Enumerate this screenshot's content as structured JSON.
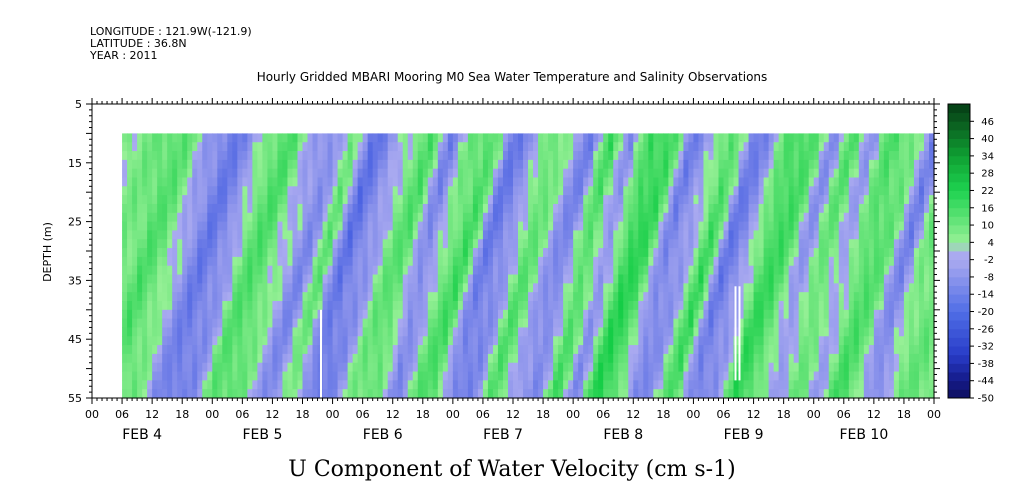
{
  "header": {
    "longitude": "LONGITUDE : 121.9W(-121.9)",
    "latitude": "LATITUDE : 36.8N",
    "year": "YEAR : 2011",
    "title": "Hourly Gridded MBARI Mooring M0 Sea Water Temperature and Salinity Observations"
  },
  "chart_data": {
    "type": "heatmap",
    "title": "Hourly Gridded MBARI Mooring M0 Sea Water Temperature and Salinity Observations",
    "xlabel": "U Component of Water Velocity (cm s-1)",
    "ylabel": "DEPTH (m)",
    "y_axis": {
      "ticks": [
        5,
        15,
        25,
        35,
        45,
        55
      ],
      "range": [
        5,
        55
      ],
      "inverted": true
    },
    "x_axis": {
      "hour_ticks": [
        "00",
        "06",
        "12",
        "18",
        "00",
        "06",
        "12",
        "18",
        "00",
        "06",
        "12",
        "18",
        "00",
        "06",
        "12",
        "18",
        "00",
        "06",
        "12",
        "18",
        "00",
        "06",
        "12",
        "18",
        "00",
        "06",
        "12",
        "18",
        "00"
      ],
      "day_labels": [
        "FEB 4",
        "FEB 5",
        "FEB 6",
        "FEB 7",
        "FEB 8",
        "FEB 9",
        "FEB 10"
      ],
      "range_hours": [
        0,
        168
      ]
    },
    "data_extent": {
      "start_hour": 6,
      "end_hour": 168,
      "depth_top": 10,
      "depth_bottom": 55
    },
    "colorbar": {
      "labels": [
        "46",
        "40",
        "34",
        "28",
        "22",
        "16",
        "10",
        "4",
        "-2",
        "-8",
        "-14",
        "-20",
        "-26",
        "-32",
        "-38",
        "-44",
        "-50"
      ],
      "range": [
        -50,
        52
      ],
      "step": 3
    },
    "hourly_u_profile": [
      {
        "hour": 6,
        "u": 4
      },
      {
        "hour": 10,
        "u": 10
      },
      {
        "hour": 14,
        "u": 6
      },
      {
        "hour": 18,
        "u": -6
      },
      {
        "hour": 22,
        "u": -14
      },
      {
        "hour": 26,
        "u": -8
      },
      {
        "hour": 30,
        "u": 8
      },
      {
        "hour": 34,
        "u": 10
      },
      {
        "hour": 38,
        "u": -2
      },
      {
        "hour": 42,
        "u": -10
      },
      {
        "hour": 46,
        "u": 8
      },
      {
        "hour": 50,
        "u": -16
      },
      {
        "hour": 54,
        "u": -8
      },
      {
        "hour": 58,
        "u": 4
      },
      {
        "hour": 62,
        "u": 10
      },
      {
        "hour": 66,
        "u": -12
      },
      {
        "hour": 70,
        "u": 6
      },
      {
        "hour": 74,
        "u": 12
      },
      {
        "hour": 78,
        "u": -14
      },
      {
        "hour": 82,
        "u": -8
      },
      {
        "hour": 86,
        "u": 10
      },
      {
        "hour": 90,
        "u": -2
      },
      {
        "hour": 94,
        "u": -12
      },
      {
        "hour": 98,
        "u": 14
      },
      {
        "hour": 102,
        "u": -10
      },
      {
        "hour": 106,
        "u": 16
      },
      {
        "hour": 110,
        "u": 12
      },
      {
        "hour": 114,
        "u": -12
      },
      {
        "hour": 118,
        "u": -4
      },
      {
        "hour": 122,
        "u": 14
      },
      {
        "hour": 126,
        "u": -14
      },
      {
        "hour": 130,
        "u": -6
      },
      {
        "hour": 134,
        "u": 14
      },
      {
        "hour": 138,
        "u": 10
      },
      {
        "hour": 142,
        "u": -8
      },
      {
        "hour": 146,
        "u": 10
      },
      {
        "hour": 150,
        "u": -6
      },
      {
        "hour": 154,
        "u": 12
      },
      {
        "hour": 158,
        "u": 6
      },
      {
        "hour": 162,
        "u": -12
      },
      {
        "hour": 166,
        "u": 6
      }
    ]
  }
}
